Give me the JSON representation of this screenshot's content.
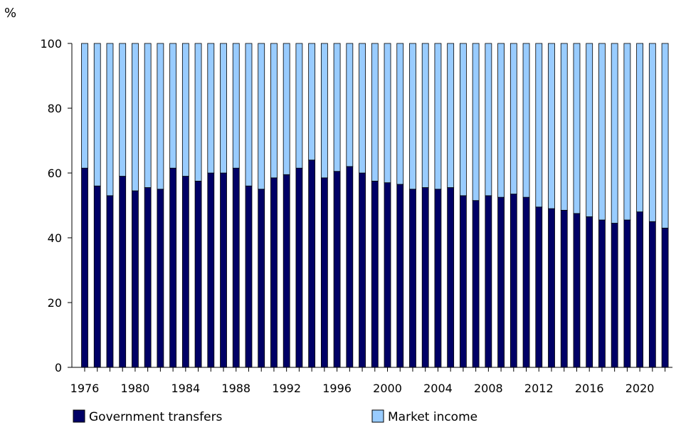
{
  "chart_data": {
    "type": "bar",
    "stacked": true,
    "ylabel": "%",
    "ylim": [
      0,
      100
    ],
    "yticks": [
      0,
      20,
      40,
      60,
      80,
      100
    ],
    "x": [
      1976,
      1977,
      1978,
      1979,
      1980,
      1981,
      1982,
      1983,
      1984,
      1985,
      1986,
      1987,
      1988,
      1989,
      1990,
      1991,
      1992,
      1993,
      1994,
      1995,
      1996,
      1997,
      1998,
      1999,
      2000,
      2001,
      2002,
      2003,
      2004,
      2005,
      2006,
      2007,
      2008,
      2009,
      2010,
      2011,
      2012,
      2013,
      2014,
      2015,
      2016,
      2017,
      2018,
      2019,
      2020,
      2021,
      2022
    ],
    "xtick_labels": [
      "1976",
      "1980",
      "1984",
      "1988",
      "1992",
      "1996",
      "2000",
      "2004",
      "2008",
      "2012",
      "2016",
      "2020"
    ],
    "series": [
      {
        "name": "Government transfers",
        "color": "#000066",
        "values": [
          61.5,
          56,
          53,
          59,
          54.5,
          55.5,
          55,
          61.5,
          59,
          57.5,
          60,
          60,
          61.5,
          56,
          55,
          58.5,
          59.5,
          61.5,
          64,
          58.5,
          60.5,
          62,
          60,
          57.5,
          57,
          56.5,
          55,
          55.5,
          55,
          55.5,
          53,
          51.5,
          53,
          52.5,
          53.5,
          52.5,
          49.5,
          49,
          48.5,
          47.5,
          46.5,
          45.5,
          44.5,
          45.5,
          48,
          45,
          43
        ]
      },
      {
        "name": "Market income",
        "color": "#99CCFF",
        "values": [
          38.5,
          44,
          47,
          41,
          45.5,
          44.5,
          45,
          38.5,
          41,
          42.5,
          40,
          40,
          38.5,
          44,
          45,
          41.5,
          40.5,
          38.5,
          36,
          41.5,
          39.5,
          38,
          40,
          42.5,
          43,
          43.5,
          45,
          44.5,
          45,
          44.5,
          47,
          48.5,
          47,
          47.5,
          46.5,
          47.5,
          50.5,
          51,
          51.5,
          52.5,
          53.5,
          54.5,
          55.5,
          54.5,
          52,
          55,
          57
        ]
      }
    ],
    "grid": false,
    "legend_position": "bottom"
  }
}
